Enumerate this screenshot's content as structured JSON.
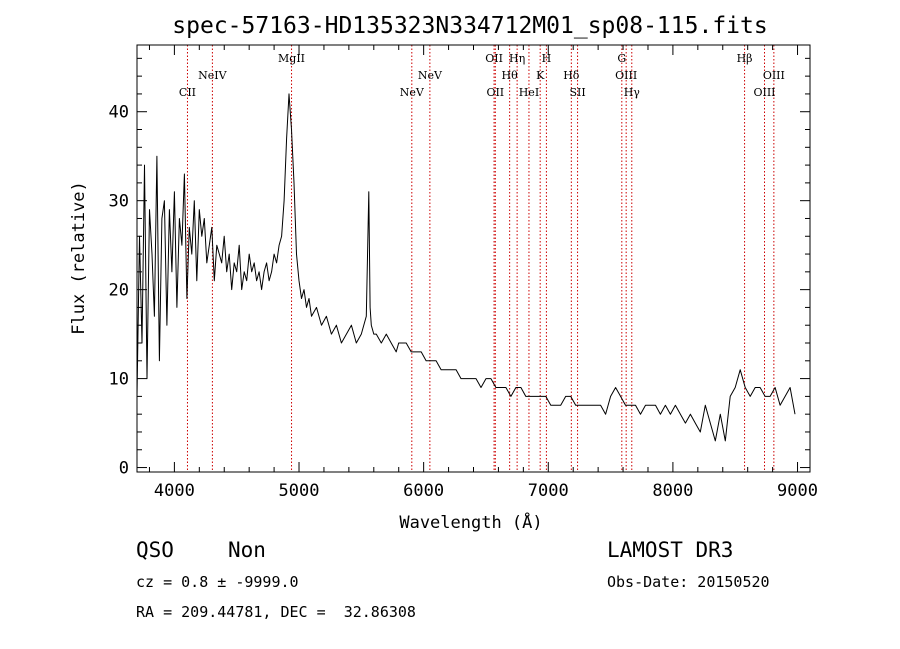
{
  "chart_data": {
    "type": "line",
    "title": "spec-57163-HD135323N334712M01_sp08-115.fits",
    "xlabel": "Wavelength (Å)",
    "ylabel": "Flux (relative)",
    "xlim": [
      3700,
      9100
    ],
    "ylim": [
      -0.5,
      47.5
    ],
    "x_ticks": [
      4000,
      5000,
      6000,
      7000,
      8000,
      9000
    ],
    "y_ticks": [
      0,
      10,
      20,
      30,
      40
    ],
    "grid": false,
    "line_color": "#000000",
    "marker_color": "#cc0000",
    "series": [
      {
        "x": [
          3700,
          3720,
          3740,
          3760,
          3780,
          3800,
          3820,
          3840,
          3860,
          3880,
          3900,
          3920,
          3940,
          3960,
          3980,
          4000,
          4020,
          4040,
          4060,
          4080,
          4100,
          4120,
          4140,
          4160,
          4180,
          4200,
          4220,
          4240,
          4260,
          4280,
          4300,
          4320,
          4340,
          4360,
          4380,
          4400,
          4420,
          4440,
          4460,
          4480,
          4500,
          4520,
          4540,
          4560,
          4580,
          4600,
          4620,
          4640,
          4660,
          4680,
          4700,
          4720,
          4740,
          4760,
          4780,
          4800,
          4820,
          4840,
          4860,
          4880,
          4900,
          4920,
          4940,
          4960,
          4980,
          5000,
          5020,
          5040,
          5060,
          5080,
          5100,
          5140,
          5180,
          5220,
          5260,
          5300,
          5340,
          5380,
          5420,
          5460,
          5500,
          5540,
          5560,
          5570,
          5580,
          5600,
          5620,
          5660,
          5700,
          5740,
          5780,
          5800,
          5820,
          5860,
          5900,
          5940,
          5980,
          6020,
          6060,
          6100,
          6140,
          6180,
          6220,
          6260,
          6300,
          6340,
          6380,
          6420,
          6460,
          6500,
          6540,
          6580,
          6620,
          6660,
          6700,
          6740,
          6780,
          6820,
          6860,
          6900,
          6940,
          6980,
          7020,
          7060,
          7100,
          7140,
          7180,
          7220,
          7260,
          7300,
          7340,
          7380,
          7420,
          7460,
          7500,
          7540,
          7580,
          7620,
          7660,
          7700,
          7740,
          7780,
          7820,
          7860,
          7900,
          7940,
          7980,
          8020,
          8060,
          8100,
          8140,
          8180,
          8220,
          8260,
          8300,
          8340,
          8380,
          8420,
          8460,
          8500,
          8540,
          8580,
          8620,
          8660,
          8700,
          8740,
          8780,
          8820,
          8860,
          8900,
          8940,
          8980
        ],
        "y": [
          8,
          26,
          14,
          34,
          10,
          29,
          24,
          17,
          35,
          12,
          28,
          30,
          16,
          29,
          22,
          31,
          18,
          28,
          25,
          33,
          19,
          27,
          24,
          30,
          21,
          29,
          26,
          28,
          23,
          25,
          27,
          21,
          25,
          24,
          23,
          26,
          22,
          24,
          20,
          23,
          22,
          25,
          20,
          22,
          21,
          24,
          22,
          23,
          21,
          22,
          20,
          22,
          23,
          21,
          22,
          24,
          23,
          25,
          26,
          30,
          37,
          42,
          38,
          32,
          24,
          21,
          19,
          20,
          18,
          19,
          17,
          18,
          16,
          17,
          15,
          16,
          14,
          15,
          16,
          14,
          15,
          17,
          31,
          18,
          16,
          15,
          15,
          14,
          15,
          14,
          13,
          14,
          14,
          14,
          13,
          13,
          13,
          12,
          12,
          12,
          11,
          11,
          11,
          11,
          10,
          10,
          10,
          10,
          9,
          10,
          10,
          9,
          9,
          9,
          8,
          9,
          9,
          8,
          8,
          8,
          8,
          8,
          7,
          7,
          7,
          8,
          8,
          7,
          7,
          7,
          7,
          7,
          7,
          6,
          8,
          9,
          8,
          7,
          7,
          7,
          6,
          7,
          7,
          7,
          6,
          7,
          6,
          7,
          6,
          5,
          6,
          5,
          4,
          7,
          5,
          3,
          6,
          3,
          8,
          9,
          11,
          9,
          8,
          9,
          9,
          8,
          8,
          9,
          7,
          8,
          9,
          6
        ]
      }
    ],
    "line_markers": [
      {
        "name": "CII",
        "wavelength": 4105,
        "row": 3
      },
      {
        "name": "NeIV",
        "wavelength": 4305,
        "row": 2
      },
      {
        "name": "MgII",
        "wavelength": 4940,
        "row": 1
      },
      {
        "name": "NeV",
        "wavelength": 5905,
        "row": 3
      },
      {
        "name": "NeV",
        "wavelength": 6050,
        "row": 2
      },
      {
        "name": "OII",
        "wavelength": 6565,
        "row": 1
      },
      {
        "name": "OII",
        "wavelength": 6575,
        "row": 3
      },
      {
        "name": "Hθ",
        "wavelength": 6690,
        "row": 2
      },
      {
        "name": "Hη",
        "wavelength": 6750,
        "row": 1
      },
      {
        "name": "HeI",
        "wavelength": 6845,
        "row": 3
      },
      {
        "name": "K",
        "wavelength": 6935,
        "row": 2
      },
      {
        "name": "H",
        "wavelength": 6985,
        "row": 1
      },
      {
        "name": "Hδ",
        "wavelength": 7185,
        "row": 2
      },
      {
        "name": "SII",
        "wavelength": 7235,
        "row": 3
      },
      {
        "name": "G",
        "wavelength": 7590,
        "row": 1
      },
      {
        "name": "OIII",
        "wavelength": 7625,
        "row": 2
      },
      {
        "name": "Hγ",
        "wavelength": 7670,
        "row": 3
      },
      {
        "name": "Hβ",
        "wavelength": 8575,
        "row": 1
      },
      {
        "name": "OIII",
        "wavelength": 8735,
        "row": 3
      },
      {
        "name": "OIII",
        "wavelength": 8810,
        "row": 2
      }
    ]
  },
  "info": {
    "class_label": "QSO",
    "subclass_label": "Non",
    "cz_line": "cz = 0.8 ± -9999.0",
    "radec_line": "RA = 209.44781, DEC =  32.86308",
    "survey": "LAMOST DR3",
    "obs_date": "Obs-Date: 20150520"
  }
}
